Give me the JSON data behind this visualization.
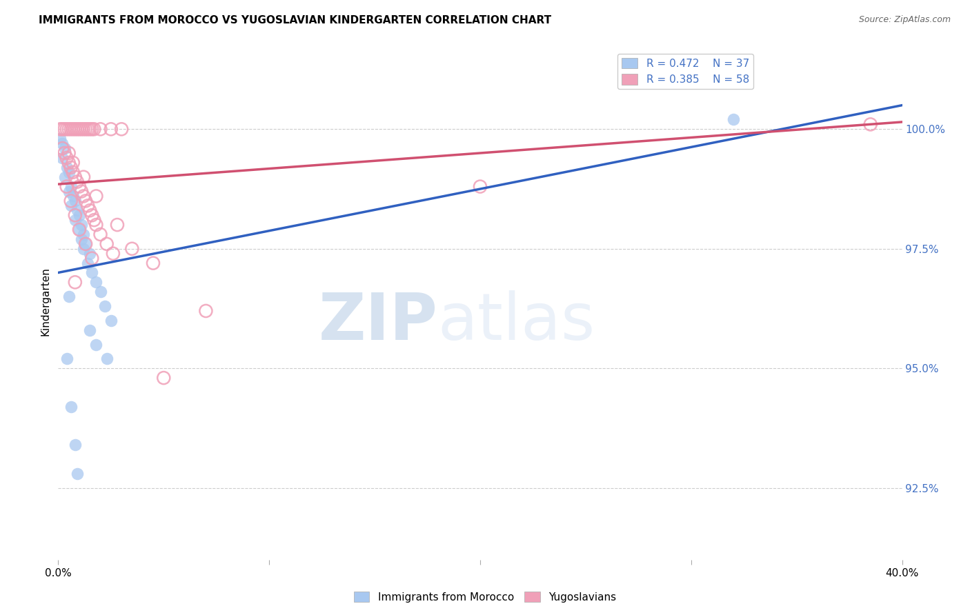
{
  "title": "IMMIGRANTS FROM MOROCCO VS YUGOSLAVIAN KINDERGARTEN CORRELATION CHART",
  "source": "Source: ZipAtlas.com",
  "ylabel": "Kindergarten",
  "ytick_values": [
    92.5,
    95.0,
    97.5,
    100.0
  ],
  "xlim": [
    0.0,
    40.0
  ],
  "ylim": [
    91.0,
    101.8
  ],
  "legend_blue_r": "R = 0.472",
  "legend_blue_n": "N = 37",
  "legend_pink_r": "R = 0.385",
  "legend_pink_n": "N = 58",
  "blue_color": "#A8C8F0",
  "pink_color": "#F0A0B8",
  "blue_line_color": "#3060C0",
  "pink_line_color": "#D05070",
  "blue_scatter": [
    [
      0.1,
      99.8
    ],
    [
      0.2,
      99.7
    ],
    [
      0.3,
      99.6
    ],
    [
      0.2,
      99.4
    ],
    [
      0.4,
      99.2
    ],
    [
      0.5,
      99.1
    ],
    [
      0.3,
      99.0
    ],
    [
      0.6,
      98.8
    ],
    [
      0.5,
      98.7
    ],
    [
      0.7,
      98.6
    ],
    [
      0.8,
      98.5
    ],
    [
      0.6,
      98.4
    ],
    [
      0.9,
      98.3
    ],
    [
      1.0,
      98.2
    ],
    [
      0.8,
      98.1
    ],
    [
      1.1,
      98.0
    ],
    [
      1.0,
      97.9
    ],
    [
      1.2,
      97.8
    ],
    [
      1.1,
      97.7
    ],
    [
      1.3,
      97.6
    ],
    [
      1.2,
      97.5
    ],
    [
      1.5,
      97.4
    ],
    [
      1.4,
      97.2
    ],
    [
      1.6,
      97.0
    ],
    [
      1.8,
      96.8
    ],
    [
      2.0,
      96.6
    ],
    [
      2.2,
      96.3
    ],
    [
      2.5,
      96.0
    ],
    [
      1.5,
      95.8
    ],
    [
      1.8,
      95.5
    ],
    [
      2.3,
      95.2
    ],
    [
      0.5,
      96.5
    ],
    [
      0.4,
      95.2
    ],
    [
      0.6,
      94.2
    ],
    [
      0.8,
      93.4
    ],
    [
      0.9,
      92.8
    ],
    [
      32.0,
      100.2
    ]
  ],
  "pink_scatter": [
    [
      0.1,
      100.0
    ],
    [
      0.2,
      100.0
    ],
    [
      0.3,
      100.0
    ],
    [
      0.4,
      100.0
    ],
    [
      0.5,
      100.0
    ],
    [
      0.6,
      100.0
    ],
    [
      0.7,
      100.0
    ],
    [
      0.8,
      100.0
    ],
    [
      0.9,
      100.0
    ],
    [
      1.0,
      100.0
    ],
    [
      1.1,
      100.0
    ],
    [
      1.2,
      100.0
    ],
    [
      1.3,
      100.0
    ],
    [
      1.4,
      100.0
    ],
    [
      1.5,
      100.0
    ],
    [
      1.6,
      100.0
    ],
    [
      1.7,
      100.0
    ],
    [
      2.0,
      100.0
    ],
    [
      2.5,
      100.0
    ],
    [
      3.0,
      100.0
    ],
    [
      0.2,
      99.6
    ],
    [
      0.3,
      99.5
    ],
    [
      0.4,
      99.4
    ],
    [
      0.5,
      99.3
    ],
    [
      0.6,
      99.2
    ],
    [
      0.7,
      99.1
    ],
    [
      0.8,
      99.0
    ],
    [
      0.9,
      98.9
    ],
    [
      1.0,
      98.8
    ],
    [
      1.1,
      98.7
    ],
    [
      1.2,
      98.6
    ],
    [
      1.3,
      98.5
    ],
    [
      1.4,
      98.4
    ],
    [
      1.5,
      98.3
    ],
    [
      1.6,
      98.2
    ],
    [
      1.7,
      98.1
    ],
    [
      1.8,
      98.0
    ],
    [
      2.0,
      97.8
    ],
    [
      2.3,
      97.6
    ],
    [
      2.6,
      97.4
    ],
    [
      0.4,
      98.8
    ],
    [
      0.6,
      98.5
    ],
    [
      0.8,
      98.2
    ],
    [
      1.0,
      97.9
    ],
    [
      1.3,
      97.6
    ],
    [
      1.6,
      97.3
    ],
    [
      0.5,
      99.5
    ],
    [
      0.7,
      99.3
    ],
    [
      1.2,
      99.0
    ],
    [
      1.8,
      98.6
    ],
    [
      3.5,
      97.5
    ],
    [
      4.5,
      97.2
    ],
    [
      5.0,
      94.8
    ],
    [
      2.8,
      98.0
    ],
    [
      20.0,
      98.8
    ],
    [
      38.5,
      100.1
    ],
    [
      7.0,
      96.2
    ],
    [
      0.8,
      96.8
    ]
  ],
  "watermark_zip": "ZIP",
  "watermark_atlas": "atlas",
  "background_color": "#ffffff",
  "grid_color": "#cccccc"
}
